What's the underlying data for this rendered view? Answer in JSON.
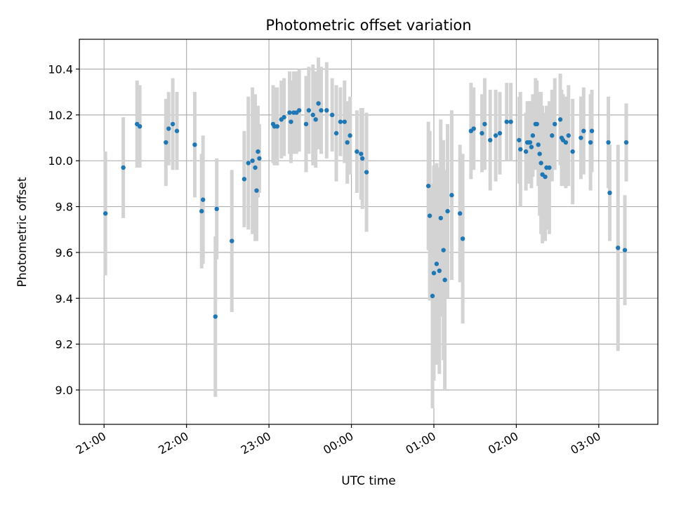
{
  "chart_data": {
    "type": "scatter",
    "title": "Photometric offset variation",
    "xlabel": "UTC time",
    "ylabel": "Photometric offset",
    "x_axis": "datetime",
    "x_ticks": [
      "21:00",
      "22:00",
      "23:00",
      "00:00",
      "01:00",
      "02:00",
      "03:00"
    ],
    "xlim": [
      "20:42",
      "03:43"
    ],
    "ylim": [
      8.85,
      10.53
    ],
    "y_ticks": [
      "9.0",
      "9.2",
      "9.4",
      "9.6",
      "9.8",
      "10.0",
      "10.2",
      "10.4"
    ],
    "grid": true,
    "marker_color": "#1f77b4",
    "errorbar_color": "#d3d3d3",
    "series": [
      {
        "x": [
          "21:01",
          "21:14",
          "21:24",
          "21:26",
          "21:45",
          "21:47",
          "21:50",
          "21:53",
          "22:06",
          "22:11",
          "22:12",
          "22:21",
          "22:22",
          "22:33",
          "22:42",
          "22:45",
          "22:48",
          "22:50",
          "22:51",
          "22:52",
          "22:53",
          "23:03",
          "23:04",
          "23:06",
          "23:09",
          "23:11",
          "23:15",
          "23:16",
          "23:18",
          "23:20",
          "23:22",
          "23:27",
          "23:29",
          "23:32",
          "23:34",
          "23:36",
          "23:38",
          "23:42",
          "23:46",
          "23:49",
          "23:52",
          "23:55",
          "23:57",
          "23:59",
          "00:04",
          "00:07",
          "00:08",
          "00:11",
          "00:56",
          "00:57",
          "00:59",
          "01:00",
          "01:02",
          "01:04",
          "01:05",
          "01:07",
          "01:08",
          "01:10",
          "01:13",
          "01:19",
          "01:21",
          "01:27",
          "01:29",
          "01:35",
          "01:37",
          "01:41",
          "01:45",
          "01:48",
          "01:53",
          "01:56",
          "02:02",
          "02:03",
          "02:07",
          "02:08",
          "02:09",
          "02:10",
          "02:11",
          "02:12",
          "02:14",
          "02:15",
          "02:16",
          "02:17",
          "02:18",
          "02:19",
          "02:21",
          "02:22",
          "02:24",
          "02:26",
          "02:28",
          "02:32",
          "02:33",
          "02:34",
          "02:36",
          "02:38",
          "02:41",
          "02:47",
          "02:49",
          "02:54",
          "02:55",
          "03:07",
          "03:08",
          "03:14",
          "03:19",
          "03:20"
        ],
        "y": [
          9.77,
          9.97,
          10.16,
          10.15,
          10.08,
          10.14,
          10.16,
          10.13,
          10.07,
          9.78,
          9.83,
          9.32,
          9.79,
          9.65,
          9.92,
          9.99,
          10.0,
          9.97,
          9.87,
          10.04,
          10.01,
          10.16,
          10.15,
          10.15,
          10.18,
          10.19,
          10.21,
          10.17,
          10.21,
          10.21,
          10.22,
          10.16,
          10.22,
          10.2,
          10.18,
          10.25,
          10.22,
          10.22,
          10.2,
          10.12,
          10.17,
          10.17,
          10.08,
          10.11,
          10.04,
          10.03,
          10.01,
          9.95,
          9.89,
          9.76,
          9.41,
          9.51,
          9.55,
          9.52,
          9.75,
          9.61,
          9.48,
          9.78,
          9.85,
          9.77,
          9.66,
          10.13,
          10.14,
          10.12,
          10.16,
          10.09,
          10.11,
          10.12,
          10.17,
          10.17,
          10.09,
          10.05,
          10.04,
          10.08,
          10.08,
          10.08,
          10.06,
          10.11,
          10.16,
          10.16,
          10.07,
          10.03,
          9.99,
          9.94,
          9.93,
          9.97,
          9.97,
          10.11,
          10.16,
          10.18,
          10.1,
          10.09,
          10.08,
          10.11,
          10.04,
          10.1,
          10.13,
          10.08,
          10.13,
          10.08,
          9.86,
          9.62,
          9.61,
          10.08
        ],
        "yerr": [
          0.27,
          0.22,
          0.19,
          0.18,
          0.19,
          0.16,
          0.2,
          0.17,
          0.23,
          0.25,
          0.28,
          0.35,
          0.22,
          0.31,
          0.21,
          0.29,
          0.32,
          0.32,
          0.22,
          0.2,
          0.15,
          0.17,
          0.17,
          0.17,
          0.17,
          0.17,
          0.18,
          0.18,
          0.18,
          0.18,
          0.18,
          0.21,
          0.19,
          0.22,
          0.21,
          0.2,
          0.19,
          0.21,
          0.16,
          0.21,
          0.15,
          0.18,
          0.18,
          0.17,
          0.18,
          0.2,
          0.22,
          0.26,
          0.28,
          0.37,
          0.49,
          0.47,
          0.44,
          0.45,
          0.43,
          0.48,
          0.48,
          0.38,
          0.37,
          0.3,
          0.37,
          0.21,
          0.18,
          0.17,
          0.2,
          0.22,
          0.2,
          0.18,
          0.17,
          0.17,
          0.19,
          0.25,
          0.17,
          0.18,
          0.18,
          0.18,
          0.18,
          0.18,
          0.2,
          0.19,
          0.18,
          0.27,
          0.31,
          0.3,
          0.28,
          0.27,
          0.29,
          0.2,
          0.2,
          0.2,
          0.21,
          0.2,
          0.2,
          0.22,
          0.23,
          0.18,
          0.19,
          0.21,
          0.18,
          0.2,
          0.21,
          0.45,
          0.24,
          0.17
        ]
      }
    ]
  }
}
